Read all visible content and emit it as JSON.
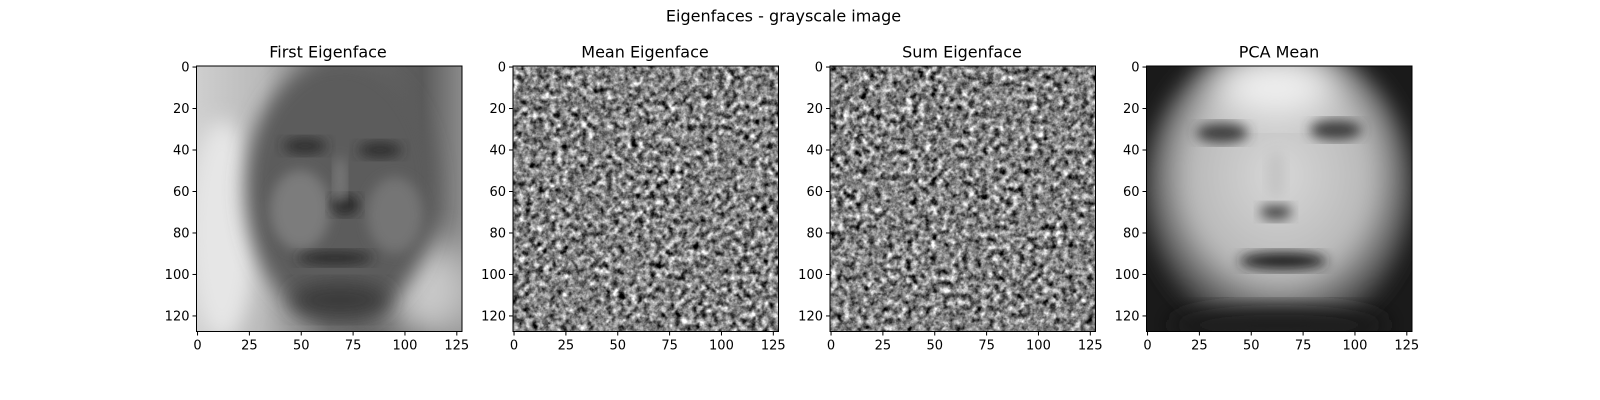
{
  "figure": {
    "suptitle": "Eigenfaces - grayscale image"
  },
  "chart_data": [
    {
      "type": "heatmap",
      "title": "First Eigenface",
      "image_kind": "face",
      "image_description": "first principal component face: bright left background, dark face region with eyes, nose and mouth",
      "colormap": "gray",
      "shape": [
        128,
        128
      ],
      "xlim": [
        0,
        127
      ],
      "ylim": [
        127,
        0
      ],
      "xticks": [
        0,
        25,
        50,
        75,
        100,
        125
      ],
      "yticks": [
        0,
        20,
        40,
        60,
        80,
        100,
        120
      ],
      "xticklabels": [
        "0",
        "25",
        "50",
        "75",
        "100",
        "125"
      ],
      "yticklabels": [
        "0",
        "20",
        "40",
        "60",
        "80",
        "100",
        "120"
      ]
    },
    {
      "type": "heatmap",
      "title": "Mean Eigenface",
      "image_kind": "noise",
      "image_description": "fine-grained gray noise texture",
      "colormap": "gray",
      "shape": [
        128,
        128
      ],
      "xlim": [
        0,
        127
      ],
      "ylim": [
        127,
        0
      ],
      "xticks": [
        0,
        25,
        50,
        75,
        100,
        125
      ],
      "yticks": [
        0,
        20,
        40,
        60,
        80,
        100,
        120
      ],
      "xticklabels": [
        "0",
        "25",
        "50",
        "75",
        "100",
        "125"
      ],
      "yticklabels": [
        "0",
        "20",
        "40",
        "60",
        "80",
        "100",
        "120"
      ]
    },
    {
      "type": "heatmap",
      "title": "Sum Eigenface",
      "image_kind": "noise",
      "image_description": "fine-grained gray noise texture (same pattern as mean eigenface)",
      "colormap": "gray",
      "shape": [
        128,
        128
      ],
      "xlim": [
        0,
        127
      ],
      "ylim": [
        127,
        0
      ],
      "xticks": [
        0,
        25,
        50,
        75,
        100,
        125
      ],
      "yticks": [
        0,
        20,
        40,
        60,
        80,
        100,
        120
      ],
      "xticklabels": [
        "0",
        "25",
        "50",
        "75",
        "100",
        "125"
      ],
      "yticklabels": [
        "0",
        "20",
        "40",
        "60",
        "80",
        "100",
        "120"
      ]
    },
    {
      "type": "heatmap",
      "title": "PCA Mean",
      "image_kind": "mean-face",
      "image_description": "blurry average face: bright forehead and cheeks, dark eyes, nostrils and mouth, dark corners",
      "colormap": "gray",
      "shape": [
        128,
        128
      ],
      "xlim": [
        0,
        127
      ],
      "ylim": [
        127,
        0
      ],
      "xticks": [
        0,
        25,
        50,
        75,
        100,
        125
      ],
      "yticks": [
        0,
        20,
        40,
        60,
        80,
        100,
        120
      ],
      "xticklabels": [
        "0",
        "25",
        "50",
        "75",
        "100",
        "125"
      ],
      "yticklabels": [
        "0",
        "20",
        "40",
        "60",
        "80",
        "100",
        "120"
      ]
    }
  ]
}
